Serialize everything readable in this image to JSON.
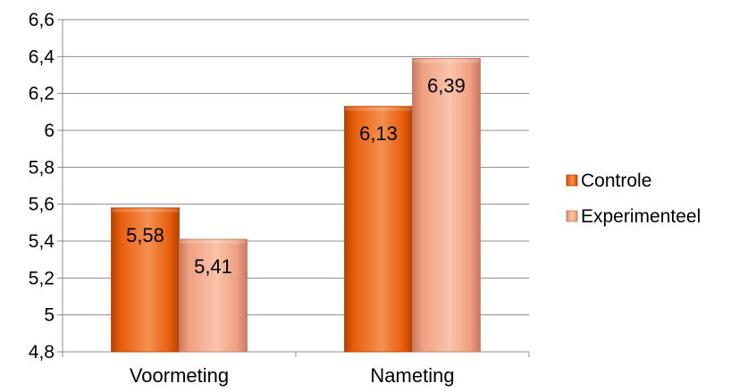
{
  "chart_data": {
    "type": "bar",
    "categories": [
      "Voormeting",
      "Nameting"
    ],
    "series": [
      {
        "name": "Controle",
        "values": [
          5.58,
          6.13
        ],
        "data_labels": [
          "5,58",
          "6,13"
        ],
        "color": "#e8600e",
        "color_light": "#f39050",
        "color_dark": "#b84200"
      },
      {
        "name": "Experimenteel",
        "values": [
          5.41,
          6.39
        ],
        "data_labels": [
          "5,41",
          "6,39"
        ],
        "color": "#f0a080",
        "color_light": "#f8c4ac",
        "color_dark": "#c87860"
      }
    ],
    "ylim": [
      4.8,
      6.6
    ],
    "yticks": [
      4.8,
      5,
      5.2,
      5.4,
      5.6,
      5.8,
      6,
      6.2,
      6.4,
      6.6
    ],
    "ytick_labels": [
      "4,8",
      "5",
      "5,2",
      "5,4",
      "5,6",
      "5,8",
      "6",
      "6,2",
      "6,4",
      "6,6"
    ],
    "grid": true,
    "legend_position": "right",
    "title": "",
    "xlabel": "",
    "ylabel": ""
  }
}
